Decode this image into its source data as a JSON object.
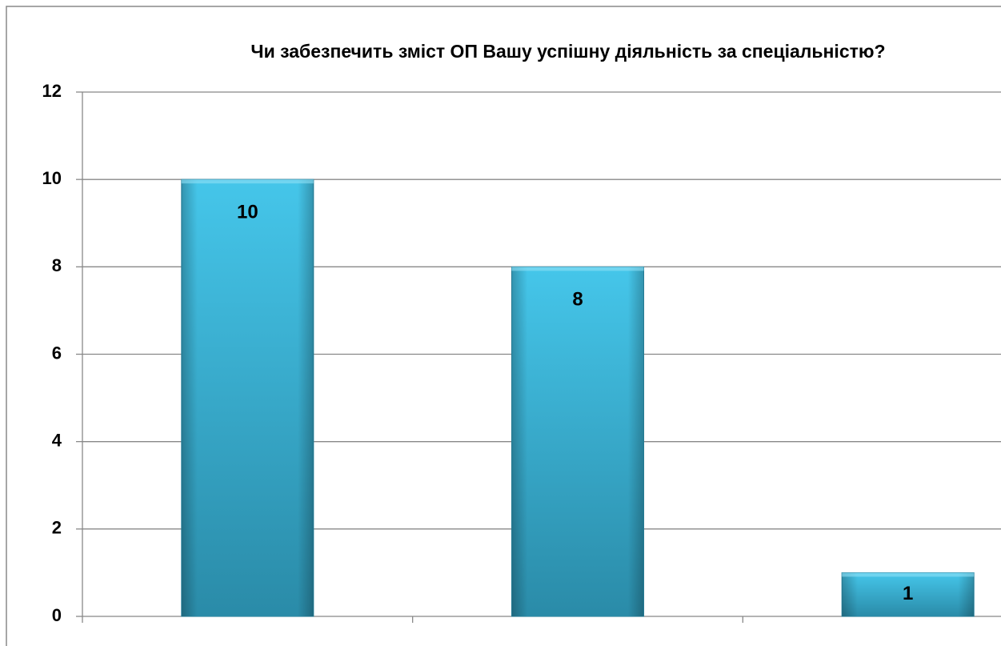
{
  "chart_data": {
    "type": "bar",
    "title": "Чи забезпечить зміст ОП Вашу успішну діяльність за спеціальністю?",
    "categories": [
      null,
      null,
      null
    ],
    "values": [
      10,
      8,
      1
    ],
    "color": "#3bbde2",
    "ylim": [
      0,
      12
    ],
    "yticks": [
      0,
      2,
      4,
      6,
      8,
      10,
      12
    ],
    "grid": true
  }
}
